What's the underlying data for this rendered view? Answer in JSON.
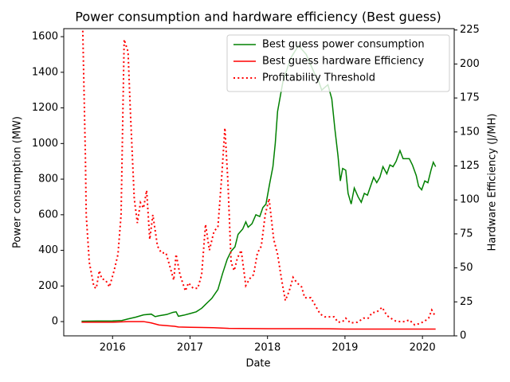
{
  "chart_data": {
    "type": "line",
    "title": "Power consumption and hardware efficiency (Best guess)",
    "xlabel": "Date",
    "ylabel": "Power consumption (MW)",
    "y2label": "Hardware Efficiency (J/MH)",
    "ycolor": "green",
    "y2color": "red",
    "xlim": [
      2015.37,
      2020.41
    ],
    "xticks": [
      2016,
      2017,
      2018,
      2019,
      2020
    ],
    "ylim": [
      -80,
      1645
    ],
    "yticks": [
      0,
      200,
      400,
      600,
      800,
      1000,
      1200,
      1400,
      1600
    ],
    "y2lim": [
      0,
      226
    ],
    "y2ticks": [
      0,
      25,
      50,
      75,
      100,
      125,
      150,
      175,
      200,
      225
    ],
    "legend": "upper right",
    "series": [
      {
        "name": "Best guess power consumption",
        "color": "green",
        "linestyle": "solid",
        "axis": "y",
        "x": [
          2015.6,
          2015.8,
          2016.0,
          2016.12,
          2016.2,
          2016.3,
          2016.4,
          2016.5,
          2016.55,
          2016.6,
          2016.7,
          2016.78,
          2016.82,
          2016.85,
          2016.92,
          2017.0,
          2017.08,
          2017.15,
          2017.22,
          2017.28,
          2017.36,
          2017.42,
          2017.48,
          2017.53,
          2017.58,
          2017.62,
          2017.68,
          2017.72,
          2017.75,
          2017.8,
          2017.85,
          2017.9,
          2017.94,
          2017.98,
          2018.03,
          2018.07,
          2018.1,
          2018.13,
          2018.2,
          2018.3,
          2018.4,
          2018.5,
          2018.6,
          2018.66,
          2018.7,
          2018.78,
          2018.83,
          2018.87,
          2018.91,
          2018.94,
          2018.97,
          2019.01,
          2019.04,
          2019.08,
          2019.12,
          2019.17,
          2019.21,
          2019.25,
          2019.29,
          2019.33,
          2019.37,
          2019.41,
          2019.45,
          2019.49,
          2019.54,
          2019.58,
          2019.62,
          2019.66,
          2019.71,
          2019.75,
          2019.83,
          2019.87,
          2019.92,
          2019.95,
          2019.99,
          2020.03,
          2020.07,
          2020.11,
          2020.14,
          2020.17
        ],
        "values": [
          2,
          3,
          4,
          6,
          15,
          25,
          38,
          42,
          28,
          33,
          40,
          52,
          55,
          30,
          36,
          45,
          55,
          75,
          105,
          130,
          180,
          270,
          350,
          395,
          420,
          490,
          520,
          560,
          530,
          550,
          600,
          590,
          640,
          660,
          780,
          870,
          1000,
          1180,
          1350,
          1480,
          1550,
          1500,
          1400,
          1350,
          1300,
          1330,
          1250,
          1080,
          930,
          790,
          860,
          850,
          720,
          660,
          750,
          700,
          670,
          720,
          710,
          760,
          810,
          780,
          810,
          870,
          830,
          880,
          870,
          900,
          960,
          915,
          915,
          880,
          820,
          760,
          740,
          790,
          780,
          850,
          895,
          870
        ]
      },
      {
        "name": "Best guess hardware Efficiency",
        "color": "red",
        "linestyle": "solid",
        "axis": "y2",
        "x": [
          2015.6,
          2016.0,
          2016.2,
          2016.4,
          2016.5,
          2016.6,
          2016.8,
          2016.85,
          2017.0,
          2017.3,
          2017.5,
          2018.0,
          2018.5,
          2018.8,
          2019.0,
          2019.5,
          2020.17
        ],
        "values": [
          10,
          10,
          10.5,
          10.5,
          9.5,
          8,
          7,
          6.5,
          6.3,
          6,
          5.5,
          5.3,
          5.3,
          5.2,
          5,
          5,
          5
        ]
      },
      {
        "name": "Profitability Threshold",
        "color": "red",
        "linestyle": "dotted",
        "axis": "y2",
        "x": [
          2015.61,
          2015.65,
          2015.66,
          2015.7,
          2015.76,
          2015.79,
          2015.83,
          2015.86,
          2015.91,
          2015.96,
          2016.02,
          2016.07,
          2016.11,
          2016.15,
          2016.2,
          2016.23,
          2016.28,
          2016.32,
          2016.36,
          2016.4,
          2016.44,
          2016.48,
          2016.52,
          2016.58,
          2016.63,
          2016.69,
          2016.74,
          2016.79,
          2016.82,
          2016.87,
          2016.94,
          2016.98,
          2017.04,
          2017.1,
          2017.15,
          2017.2,
          2017.25,
          2017.31,
          2017.36,
          2017.41,
          2017.45,
          2017.49,
          2017.53,
          2017.57,
          2017.61,
          2017.66,
          2017.72,
          2017.77,
          2017.82,
          2017.87,
          2017.92,
          2017.97,
          2018.02,
          2018.08,
          2018.13,
          2018.18,
          2018.23,
          2018.28,
          2018.33,
          2018.38,
          2018.44,
          2018.48,
          2018.56,
          2018.62,
          2018.68,
          2018.74,
          2018.81,
          2018.86,
          2018.91,
          2018.97,
          2019.01,
          2019.07,
          2019.16,
          2019.24,
          2019.3,
          2019.35,
          2019.41,
          2019.48,
          2019.54,
          2019.59,
          2019.65,
          2019.71,
          2019.77,
          2019.83,
          2019.9,
          2019.96,
          2020.02,
          2020.08,
          2020.12,
          2020.16
        ],
        "values": [
          240,
          130,
          89,
          54,
          36,
          35,
          48,
          42,
          41,
          36,
          48,
          60,
          89,
          218,
          209,
          165,
          101,
          83,
          98,
          94,
          107,
          71,
          89,
          66,
          61,
          61,
          51,
          41,
          60,
          45,
          33,
          39,
          35,
          35,
          45,
          82,
          63,
          77,
          80,
          118,
          153,
          112,
          54,
          48,
          57,
          63,
          37,
          42,
          45,
          61,
          66,
          89,
          101,
          71,
          60,
          42,
          26,
          33,
          43,
          39,
          36,
          28,
          28,
          22,
          16,
          14,
          14,
          14,
          10,
          10.5,
          13,
          9.5,
          10,
          13,
          13,
          17,
          17.5,
          21,
          15,
          13,
          11,
          10.5,
          10.5,
          11.7,
          8,
          9,
          10.5,
          13,
          19,
          15
        ]
      }
    ]
  }
}
